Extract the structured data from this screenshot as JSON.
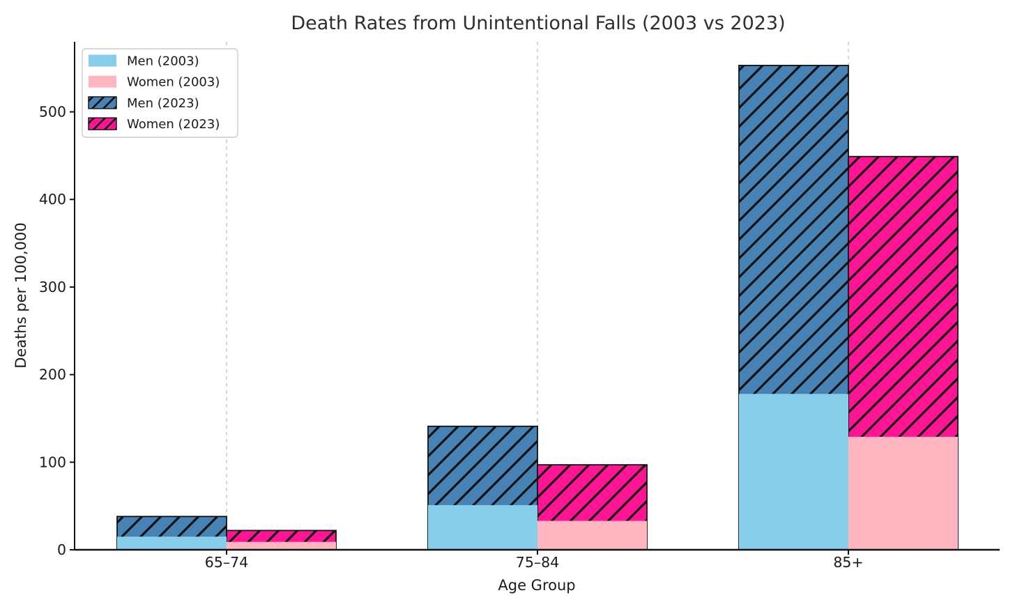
{
  "chart_data": {
    "type": "bar",
    "title": "Death Rates from Unintentional Falls (2003 vs 2023)",
    "xlabel": "Age Group",
    "ylabel": "Deaths per 100,000",
    "categories": [
      "65–74",
      "75–84",
      "85+"
    ],
    "series": [
      {
        "name": "Men (2003)",
        "values": [
          15,
          51,
          178
        ],
        "color": "#87CEEB",
        "hatch": false,
        "layer": "front",
        "side": "left"
      },
      {
        "name": "Women (2003)",
        "values": [
          9,
          33,
          129
        ],
        "color": "#FFB6C1",
        "hatch": false,
        "layer": "front",
        "side": "right"
      },
      {
        "name": "Men (2023)",
        "values": [
          38,
          141,
          553
        ],
        "color": "#4682B4",
        "hatch": true,
        "layer": "back",
        "side": "left"
      },
      {
        "name": "Women (2023)",
        "values": [
          22,
          97,
          449
        ],
        "color": "#FF1493",
        "hatch": true,
        "layer": "back",
        "side": "right"
      }
    ],
    "yticks": [
      0,
      100,
      200,
      300,
      400,
      500
    ],
    "ylim": [
      0,
      580
    ],
    "grid": "vertical-dashed",
    "grid_color": "#cccccc",
    "legend_position": "upper-left",
    "hatch_pattern": "/",
    "edge_color": "#111111",
    "axis_color": "#111111",
    "background": "#ffffff"
  }
}
